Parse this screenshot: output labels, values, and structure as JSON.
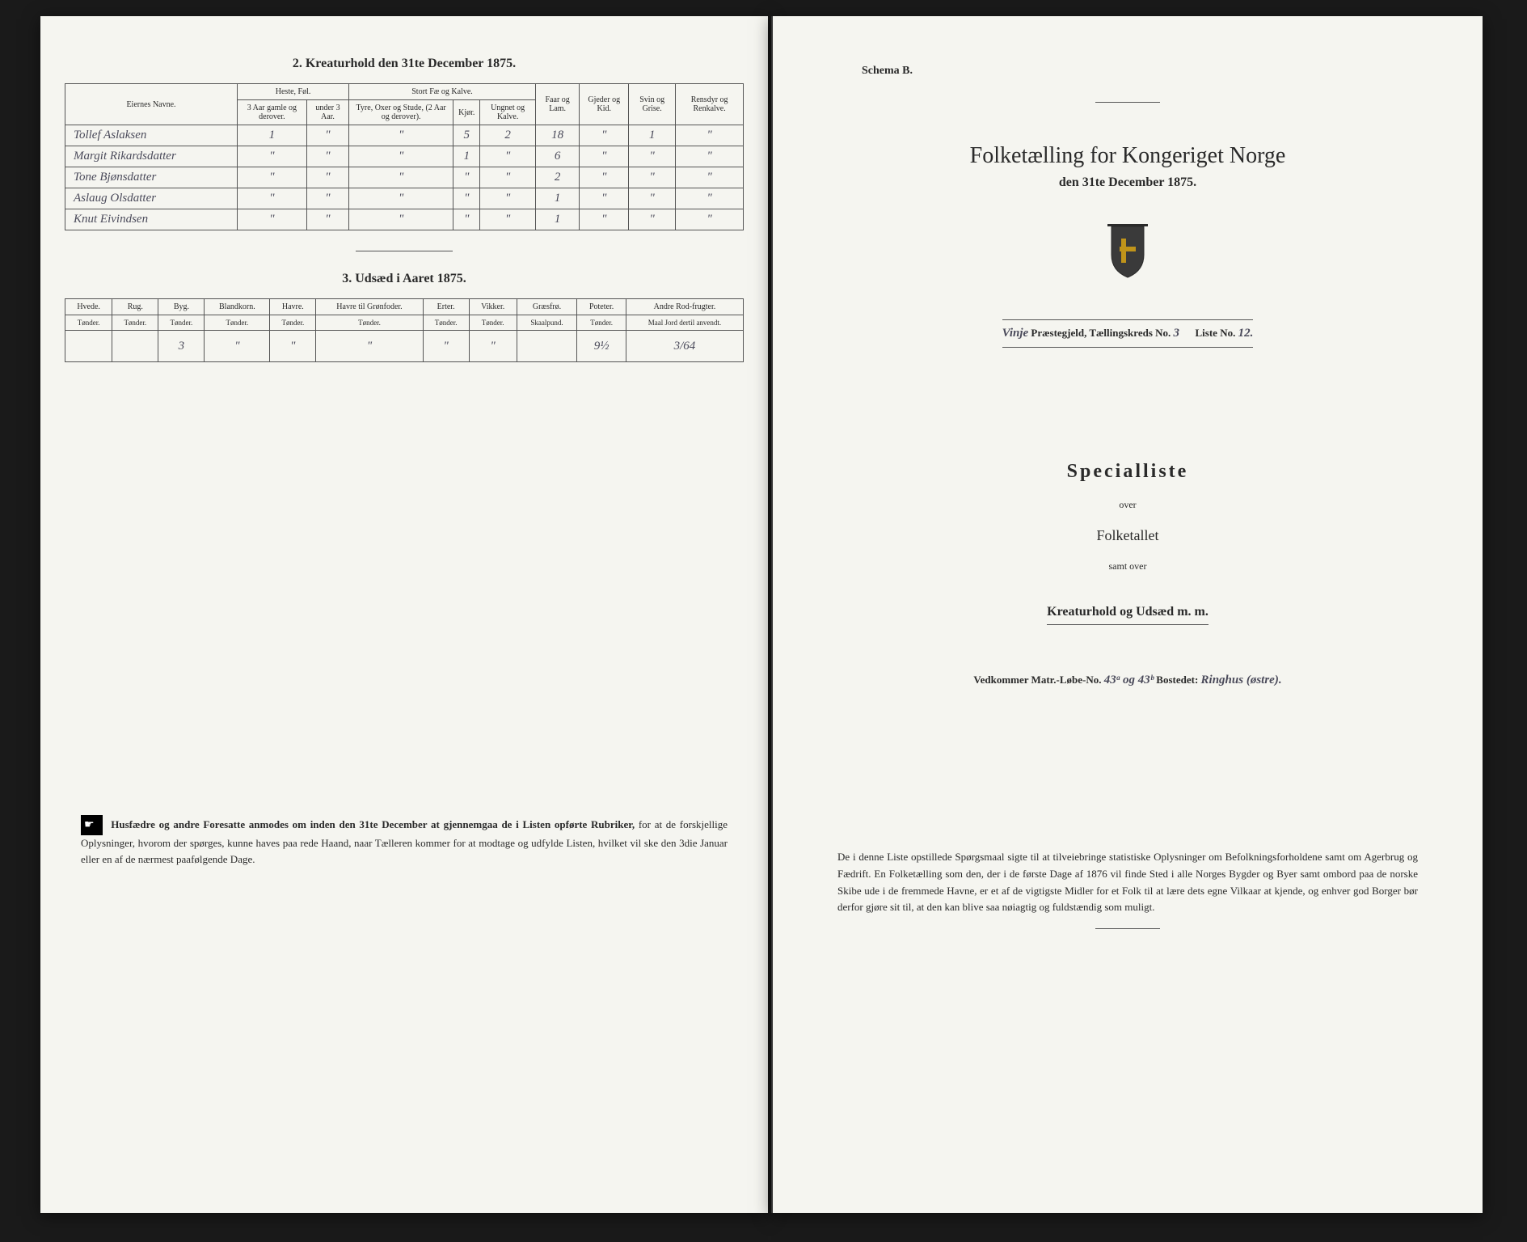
{
  "left": {
    "section2_title": "2. Kreaturhold den 31te December 1875.",
    "table2": {
      "headers": {
        "name": "Eiernes Navne.",
        "group_heste": "Heste, Føl.",
        "heste1": "3 Aar gamle og derover.",
        "heste2": "under 3 Aar.",
        "group_stort": "Stort Fæ og Kalve.",
        "stort1": "Tyre, Oxer og Stude, (2 Aar og derover).",
        "stort2": "Kjør.",
        "stort3": "Ungnet og Kalve.",
        "faar": "Faar og Lam.",
        "gjeder": "Gjeder og Kid.",
        "svin": "Svin og Grise.",
        "rens": "Rensdyr og Renkalve."
      },
      "rows": [
        {
          "name": "Tollef Aslaksen",
          "c": [
            "1",
            "\"",
            "\"",
            "5",
            "2",
            "18",
            "\"",
            "1",
            "\""
          ]
        },
        {
          "name": "Margit Rikardsdatter",
          "c": [
            "\"",
            "\"",
            "\"",
            "1",
            "\"",
            "6",
            "\"",
            "\"",
            "\""
          ]
        },
        {
          "name": "Tone Bjønsdatter",
          "c": [
            "\"",
            "\"",
            "\"",
            "\"",
            "\"",
            "2",
            "\"",
            "\"",
            "\""
          ]
        },
        {
          "name": "Aslaug Olsdatter",
          "c": [
            "\"",
            "\"",
            "\"",
            "\"",
            "\"",
            "1",
            "\"",
            "\"",
            "\""
          ]
        },
        {
          "name": "Knut Eivindsen",
          "c": [
            "\"",
            "\"",
            "\"",
            "\"",
            "\"",
            "1",
            "\"",
            "\"",
            "\""
          ]
        }
      ]
    },
    "section3_title": "3. Udsæd i Aaret 1875.",
    "table3": {
      "headers": [
        "Hvede.",
        "Rug.",
        "Byg.",
        "Blandkorn.",
        "Havre.",
        "Havre til Grønfoder.",
        "Erter.",
        "Vikker.",
        "Græsfrø.",
        "Poteter.",
        "Andre Rod-frugter."
      ],
      "units": [
        "Tønder.",
        "Tønder.",
        "Tønder.",
        "Tønder.",
        "Tønder.",
        "Tønder.",
        "Tønder.",
        "Tønder.",
        "Skaalpund.",
        "Tønder.",
        "Maal Jord dertil anvendt."
      ],
      "row": [
        "",
        "",
        "3",
        "\"",
        "\"",
        "\"",
        "\"",
        "\"",
        "",
        "9½",
        "3/64"
      ]
    },
    "notice_bold": "Husfædre og andre Foresatte anmodes om inden den 31te December at gjennemgaa de i Listen opførte Rubriker,",
    "notice_rest": " for at de forskjellige Oplysninger, hvorom der spørges, kunne haves paa rede Haand, naar Tælleren kommer for at modtage og udfylde Listen, hvilket vil ske den 3die Januar eller en af de nærmest paafølgende Dage."
  },
  "right": {
    "schema": "Schema B.",
    "main_title": "Folketælling for Kongeriget Norge",
    "main_sub": "den 31te December 1875.",
    "parish_pre": "Vinje",
    "parish_label": " Præstegjeld, Tællingskreds No.",
    "kreds_no": " 3",
    "liste_label": "Liste No.",
    "liste_no": " 12.",
    "special": "Specialliste",
    "over": "over",
    "folke": "Folketallet",
    "samt": "samt over",
    "kreatur": "Kreaturhold og Udsæd m. m.",
    "matr_label": "Vedkommer Matr.-Løbe-No.",
    "matr_no": " 43ᵃ og 43ᵇ",
    "bosted_label": " Bostedet:",
    "bosted": " Ringhus (østre).",
    "notice": "De i denne Liste opstillede Spørgsmaal sigte til at tilveiebringe statistiske Oplysninger om Befolkningsforholdene samt om Agerbrug og Fædrift. En Folketælling som den, der i de første Dage af 1876 vil finde Sted i alle Norges Bygder og Byer samt ombord paa de norske Skibe ude i de fremmede Havne, er et af de vigtigste Midler for et Folk til at lære dets egne Vilkaar at kjende, og enhver god Borger bør derfor gjøre sit til, at den kan blive saa nøiagtig og fuldstændig som muligt."
  },
  "colors": {
    "paper": "#f5f5f0",
    "ink": "#2a2a2a",
    "bg": "#1a1a1a",
    "border": "#555555"
  }
}
